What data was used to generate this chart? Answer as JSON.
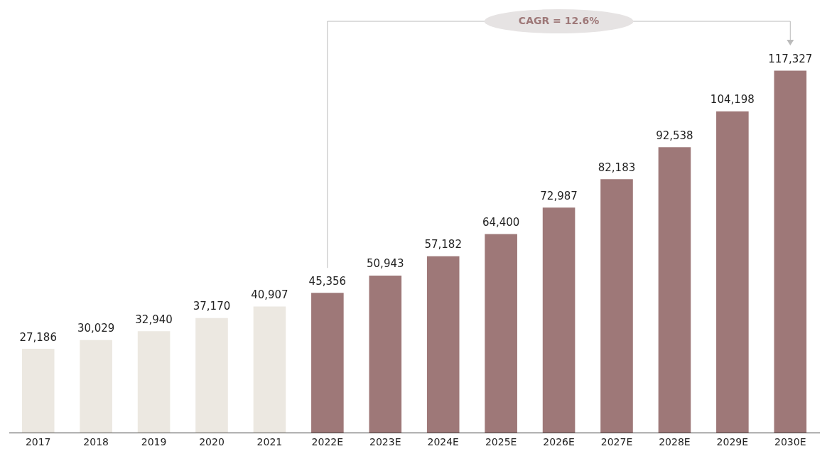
{
  "chart_data": {
    "type": "bar",
    "categories": [
      "2017",
      "2018",
      "2019",
      "2020",
      "2021",
      "2022E",
      "2023E",
      "2024E",
      "2025E",
      "2026E",
      "2027E",
      "2028E",
      "2029E",
      "2030E"
    ],
    "values": [
      27186,
      30029,
      32940,
      37170,
      40907,
      45356,
      50943,
      57182,
      64400,
      72987,
      82183,
      92538,
      104198,
      117327
    ],
    "colors": [
      "#ece8e1",
      "#ece8e1",
      "#ece8e1",
      "#ece8e1",
      "#ece8e1",
      "#9e7878",
      "#9e7878",
      "#9e7878",
      "#9e7878",
      "#9e7878",
      "#9e7878",
      "#9e7878",
      "#9e7878",
      "#9e7878"
    ],
    "value_labels": [
      "27,186",
      "30,029",
      "32,940",
      "37,170",
      "40,907",
      "45,356",
      "50,943",
      "57,182",
      "64,400",
      "72,987",
      "82,183",
      "92,538",
      "104,198",
      "117,327"
    ],
    "grid": false,
    "legend": false,
    "annotations": [
      "CAGR = 12.6%"
    ]
  }
}
